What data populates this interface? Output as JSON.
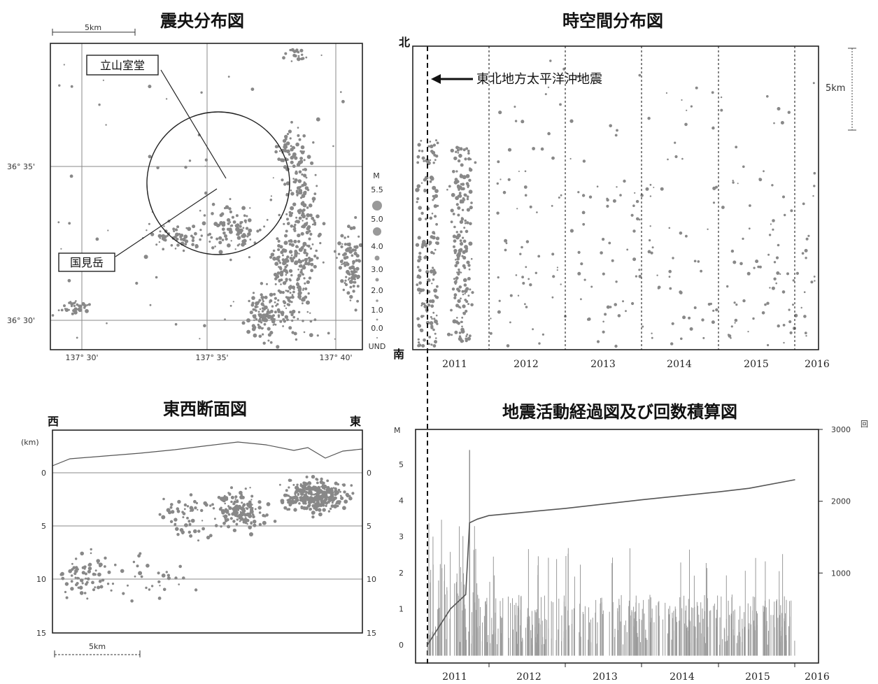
{
  "colors": {
    "dot": "#888888",
    "frame": "#222222",
    "grid": "#888888",
    "background": "#ffffff"
  },
  "epicenter_map": {
    "title": "震央分布図",
    "scale_label": "5km",
    "lat_labels": [
      "36° 35'",
      "36° 30'"
    ],
    "lon_labels": [
      "137° 30'",
      "137° 35'",
      "137° 40'"
    ],
    "callouts": {
      "tateyama": "立山室堂",
      "kunimi": "国見岳"
    },
    "magnitude_legend": {
      "axis_label": "M",
      "labels": [
        "5.5",
        "5.0",
        "4.0",
        "3.0",
        "2.0",
        "1.0",
        "0.0",
        "UND"
      ]
    }
  },
  "spacetime_plot": {
    "title": "時空間分布図",
    "north_label": "北",
    "south_label": "南",
    "scale_label": "5km",
    "event_annotation": "東北地方太平洋沖地震",
    "year_labels": [
      "2011",
      "2012",
      "2013",
      "2014",
      "2015",
      "2016"
    ]
  },
  "cross_section": {
    "title": "東西断面図",
    "west_label": "西",
    "east_label": "東",
    "unit_label": "(km)",
    "depth_labels": [
      "0",
      "5",
      "10",
      "15"
    ],
    "scale_label": "5km"
  },
  "chart_data": [
    {
      "type": "scatter",
      "title": "震央分布図",
      "xlabel": "",
      "ylabel": "",
      "x_ticks": [
        "137° 30'",
        "137° 35'",
        "137° 40'"
      ],
      "y_ticks": [
        "36° 35'",
        "36° 30'"
      ],
      "annotations": [
        "立山室堂",
        "国見岳"
      ],
      "grid": true
    },
    {
      "type": "scatter",
      "title": "時空間分布図",
      "xlabel": "",
      "ylabel": "",
      "x_ticks": [
        "2011",
        "2012",
        "2013",
        "2014",
        "2015",
        "2016"
      ],
      "annotations": [
        "東北地方太平洋沖地震"
      ],
      "grid": false
    },
    {
      "type": "scatter",
      "title": "東西断面図",
      "xlabel": "",
      "ylabel": "(km)",
      "y_ticks": [
        "0",
        "5",
        "10",
        "15"
      ],
      "ylim": [
        15,
        0
      ],
      "grid": true
    },
    {
      "type": "line",
      "title": "地震活動経過図及び回数積算図",
      "xlabel": "",
      "ylabel": "M",
      "y2label": "回",
      "x_ticks": [
        "2011",
        "2012",
        "2013",
        "2014",
        "2015",
        "2016"
      ],
      "y_ticks": [
        "0",
        "1",
        "2",
        "3",
        "4",
        "5"
      ],
      "y2_ticks": [
        "1000",
        "2000",
        "3000"
      ],
      "ylim": [
        0,
        5.5
      ],
      "y2lim": [
        0,
        3000
      ],
      "series": [
        {
          "x": [
            2011.2,
            2011.5,
            2011.7,
            2011.75,
            2011.85,
            2012,
            2013,
            2014,
            2015,
            2015.4,
            2016
          ],
          "values": [
            0,
            500,
            700,
            1700,
            1750,
            1800,
            1900,
            2020,
            2130,
            2180,
            2300
          ]
        }
      ]
    }
  ]
}
